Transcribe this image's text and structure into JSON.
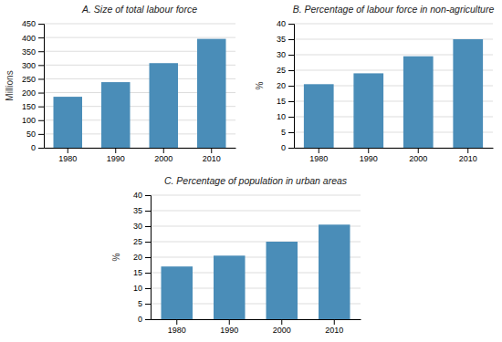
{
  "chart_data": [
    {
      "type": "bar",
      "title": "A. Size of total labour force",
      "ylabel": "Millions",
      "categories": [
        "1980",
        "1990",
        "2000",
        "2010"
      ],
      "values": [
        185,
        238,
        307,
        395
      ],
      "color": "#4A8DB8",
      "ylim": [
        0,
        450
      ],
      "yticks": [
        0,
        50,
        100,
        150,
        200,
        250,
        300,
        350,
        400,
        450
      ],
      "grid": true
    },
    {
      "type": "bar",
      "title": "B. Percentage of labour force in non-agriculture",
      "ylabel": "%",
      "categories": [
        "1980",
        "1990",
        "2000",
        "2010"
      ],
      "values": [
        20.5,
        24.0,
        29.5,
        35.0
      ],
      "color": "#4A8DB8",
      "ylim": [
        0,
        40
      ],
      "yticks": [
        0,
        5,
        10,
        15,
        20,
        25,
        30,
        35,
        40
      ],
      "grid": true
    },
    {
      "type": "bar",
      "title": "C. Percentage of population in urban areas",
      "ylabel": "%",
      "categories": [
        "1980",
        "1990",
        "2000",
        "2010"
      ],
      "values": [
        17.0,
        20.5,
        25.0,
        30.5
      ],
      "color": "#4A8DB8",
      "ylim": [
        0,
        40
      ],
      "yticks": [
        0,
        5,
        10,
        15,
        20,
        25,
        30,
        35,
        40
      ],
      "grid": true
    }
  ]
}
